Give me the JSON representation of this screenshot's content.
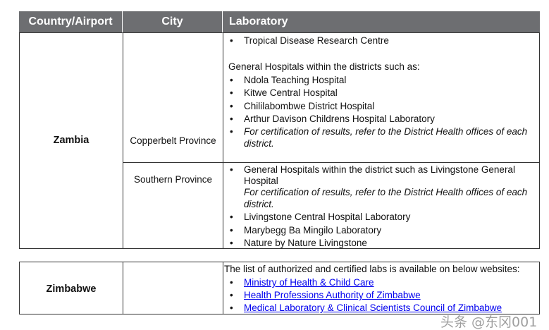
{
  "headers": [
    "Country/Airport",
    "City",
    "Laboratory"
  ],
  "zambia": {
    "country": "Zambia",
    "copperbelt": {
      "city": "Copperbelt Province",
      "top_item": "Tropical Disease Research Centre",
      "intro": "General Hospitals within the districts such as:",
      "items": [
        "Ndola Teaching Hospital",
        "Kitwe Central Hospital",
        "Chililabombwe District Hospital",
        "Arthur Davison Childrens Hospital Laboratory"
      ],
      "note_1": "For certification of results, refer to the District Health offices of each",
      "note_2": "district."
    },
    "southern": {
      "city": "Southern Province",
      "first_1": "General Hospitals within the district such as Livingstone General",
      "first_2": "Hospital",
      "note_1": "For certification of results, refer to the District Health offices of each",
      "note_2": "district.",
      "items": [
        "Livingstone Central Hospital Laboratory",
        "Marybegg Ba Mingilo Laboratory",
        "Nature by Nature Livingstone"
      ]
    }
  },
  "zimbabwe": {
    "country": "Zimbabwe",
    "intro": "The list of authorized and certified labs is available on below websites:",
    "links": [
      "Ministry of Health & Child Care",
      "Health Professions Authority of Zimbabwe",
      "Medical Laboratory & Clinical Scientists Council of Zimbabwe"
    ]
  },
  "watermark": "头条 @东冈001",
  "colors": {
    "header_bg": "#6d6e71",
    "link": "#0000ee"
  }
}
